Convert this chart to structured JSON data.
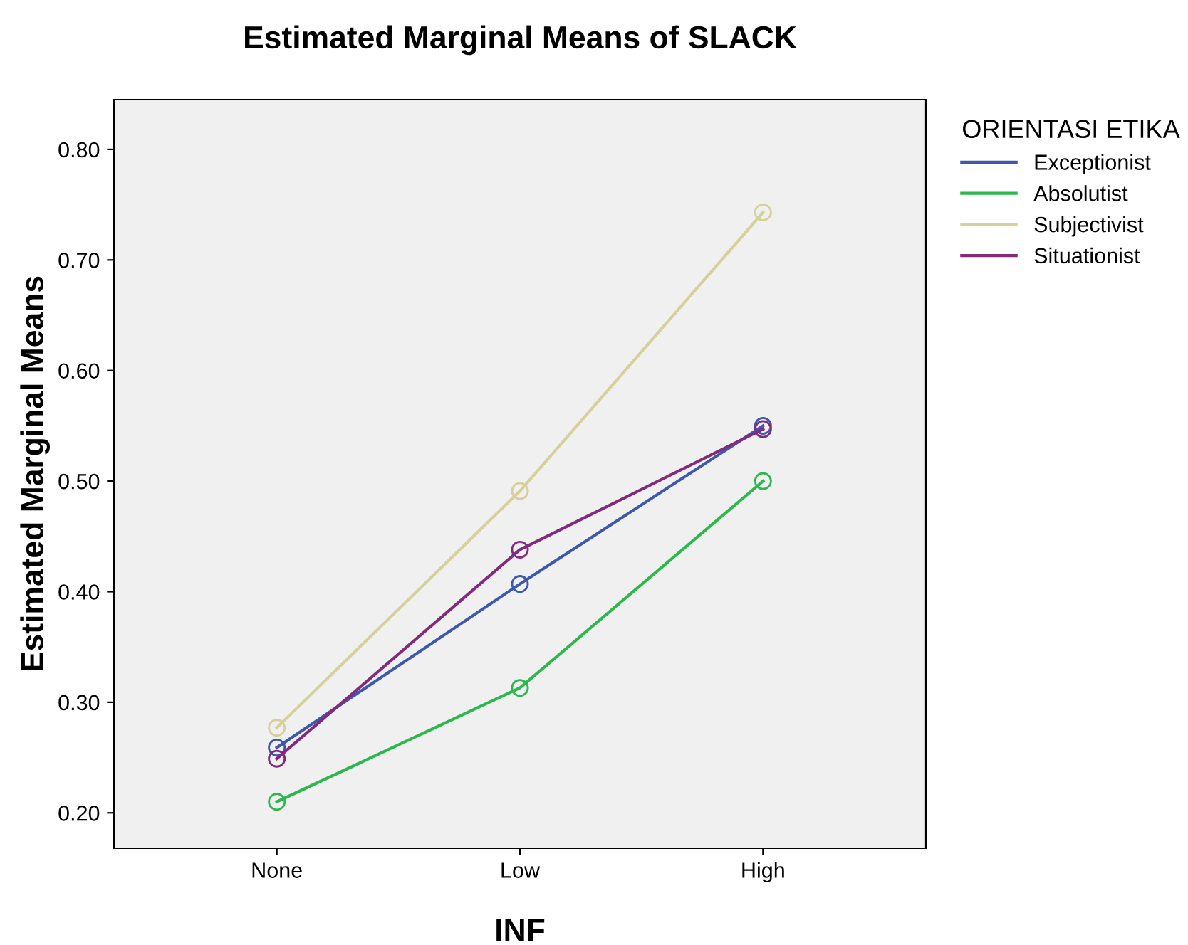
{
  "chart_data": {
    "type": "line",
    "title": "Estimated Marginal Means of SLACK",
    "xlabel": "INF",
    "ylabel": "Estimated Marginal Means",
    "legend_title": "ORIENTASI ETIKA",
    "categories": [
      "None",
      "Low",
      "High"
    ],
    "series": [
      {
        "name": "Exceptionist",
        "color": "#3e58ac",
        "values": [
          0.259,
          0.407,
          0.55
        ]
      },
      {
        "name": "Absolutist",
        "color": "#2db84d",
        "values": [
          0.21,
          0.313,
          0.5
        ]
      },
      {
        "name": "Subjectivist",
        "color": "#d6d09a",
        "values": [
          0.277,
          0.491,
          0.743
        ]
      },
      {
        "name": "Situationist",
        "color": "#822a7e",
        "values": [
          0.249,
          0.438,
          0.547
        ]
      }
    ],
    "ylim": [
      0.168,
      0.845
    ],
    "yticks": [
      {
        "value": 0.2,
        "label": "0.20"
      },
      {
        "value": 0.3,
        "label": "0.30"
      },
      {
        "value": 0.4,
        "label": "0.40"
      },
      {
        "value": 0.5,
        "label": "0.50"
      },
      {
        "value": 0.6,
        "label": "0.60"
      },
      {
        "value": 0.7,
        "label": "0.70"
      },
      {
        "value": 0.8,
        "label": "0.80"
      }
    ],
    "grid": false,
    "legend": "right",
    "marker": "circle",
    "line_style": "solid"
  }
}
